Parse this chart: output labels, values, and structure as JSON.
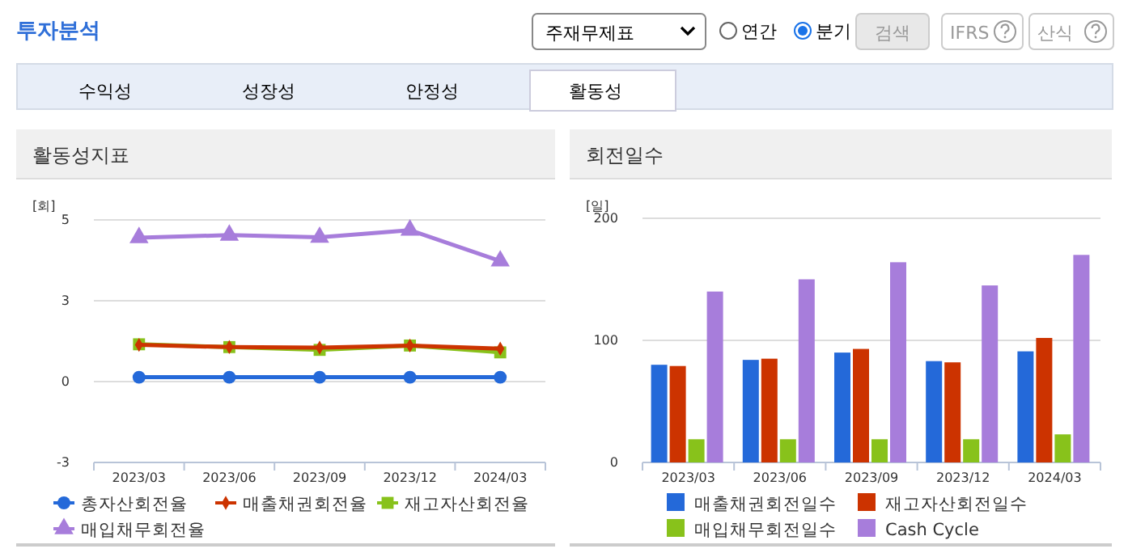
{
  "chart_data": [
    {
      "type": "other",
      "title": "투자분석",
      "annotations": [
        "주재무제표",
        "연간",
        "분기",
        "검색",
        "IFRS",
        "산식",
        "수익성",
        "성장성",
        "안정성",
        "활동성"
      ]
    },
    {
      "type": "line",
      "title": "활동성지표",
      "ylabel": "[회]",
      "categories": [
        "2023/03",
        "2023/06",
        "2023/09",
        "2023/12",
        "2024/03"
      ],
      "ylim": [
        -2.6,
        5.2
      ],
      "yticks": [
        {
          "value": -2.6,
          "label": "-3"
        },
        {
          "value": 0,
          "label": "0"
        },
        {
          "value": 2.6,
          "label": "3"
        },
        {
          "value": 5.2,
          "label": "5"
        }
      ],
      "grid": "y",
      "legend": "bottom",
      "series": [
        {
          "name": "총자산회전율",
          "color": "#2469d9",
          "marker": "circle",
          "values": [
            0.14,
            0.14,
            0.14,
            0.14,
            0.14
          ]
        },
        {
          "name": "매출채권회전율",
          "color": "#cc3300",
          "marker": "diamond",
          "values": [
            1.18,
            1.11,
            1.09,
            1.16,
            1.06
          ]
        },
        {
          "name": "재고자산회전율",
          "color": "#88c21b",
          "marker": "square",
          "values": [
            1.2,
            1.11,
            1.02,
            1.16,
            0.94
          ]
        },
        {
          "name": "매입채무회전율",
          "color": "#a77ddb",
          "marker": "triangle",
          "values": [
            4.63,
            4.71,
            4.64,
            4.87,
            3.88
          ]
        }
      ]
    },
    {
      "type": "bar",
      "title": "회전일수",
      "ylabel": "[일]",
      "categories": [
        "2023/03",
        "2023/06",
        "2023/09",
        "2023/12",
        "2024/03"
      ],
      "ylim": [
        0,
        200
      ],
      "yticks": [
        0,
        100,
        200
      ],
      "grid": "y",
      "legend": "bottom",
      "series": [
        {
          "name": "매출채권회전일수",
          "color": "#2469d9",
          "values": [
            80,
            84,
            90,
            83,
            91
          ]
        },
        {
          "name": "재고자산회전일수",
          "color": "#cc3300",
          "values": [
            79,
            85,
            93,
            82,
            102
          ]
        },
        {
          "name": "매입채무회전일수",
          "color": "#88c21b",
          "values": [
            19,
            19,
            19,
            19,
            23
          ]
        },
        {
          "name": "Cash Cycle",
          "color": "#a77ddb",
          "values": [
            140,
            150,
            164,
            145,
            170
          ]
        }
      ]
    }
  ]
}
